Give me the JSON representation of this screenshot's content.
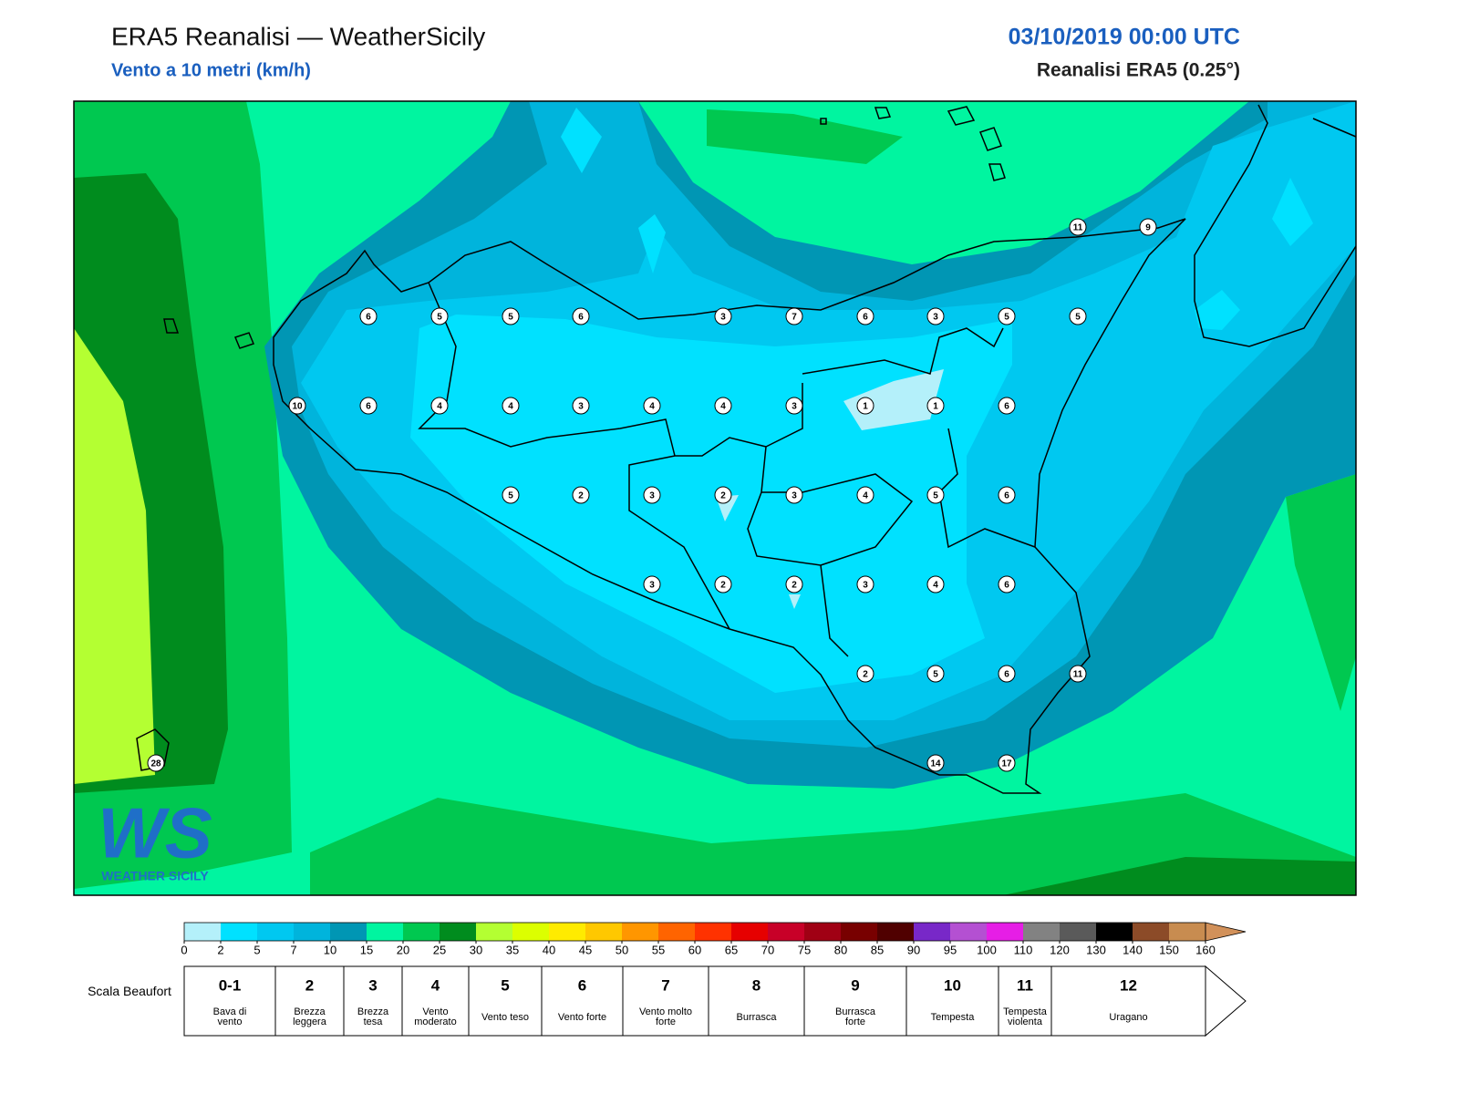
{
  "header": {
    "title": "ERA5 Reanalisi — WeatherSicily",
    "subtitle": "Vento a 10 metri (km/h)",
    "datetime": "03/10/2019 00:00 UTC",
    "source": "Reanalisi ERA5 (0.25°)"
  },
  "logo": {
    "mark": "WS",
    "name": "WEATHER SICILY"
  },
  "stations": [
    11,
    9,
    6,
    5,
    5,
    6,
    3,
    7,
    6,
    3,
    5,
    5,
    10,
    6,
    4,
    4,
    3,
    4,
    4,
    3,
    1,
    1,
    6,
    5,
    2,
    3,
    2,
    3,
    4,
    5,
    6,
    3,
    2,
    2,
    3,
    4,
    6,
    2,
    5,
    6,
    11,
    28,
    14,
    17
  ],
  "colorbar": {
    "ticks": [
      0,
      2,
      5,
      7,
      10,
      15,
      20,
      25,
      30,
      35,
      40,
      45,
      50,
      55,
      60,
      65,
      70,
      75,
      80,
      85,
      90,
      95,
      100,
      110,
      120,
      130,
      140,
      150,
      160
    ],
    "colors": [
      "#b4f0fa",
      "#00e1ff",
      "#00c8f0",
      "#00b4dc",
      "#0096b4",
      "#00f5a0",
      "#00c850",
      "#008c1e",
      "#b4ff32",
      "#dcff00",
      "#ffeb00",
      "#ffc800",
      "#ff9600",
      "#ff6400",
      "#ff3200",
      "#e60000",
      "#c80028",
      "#a00014",
      "#780000",
      "#500000",
      "#7828c8",
      "#b450d2",
      "#e61ee6",
      "#828282",
      "#5a5a5a",
      "#000000",
      "#8c4b28",
      "#c88c50"
    ],
    "extend_color": "#d2915a"
  },
  "beaufort": {
    "title": "Scala Beaufort",
    "forces": [
      "0-1",
      "2",
      "3",
      "4",
      "5",
      "6",
      "7",
      "8",
      "9",
      "10",
      "11",
      "12"
    ],
    "labels": [
      "Bava di vento",
      "Brezza leggera",
      "Brezza tesa",
      "Vento moderato",
      "Vento teso",
      "Vento forte",
      "Vento molto forte",
      "Burrasca",
      "Burrasca forte",
      "Tempesta",
      "Tempesta violenta",
      "Uragano"
    ]
  }
}
